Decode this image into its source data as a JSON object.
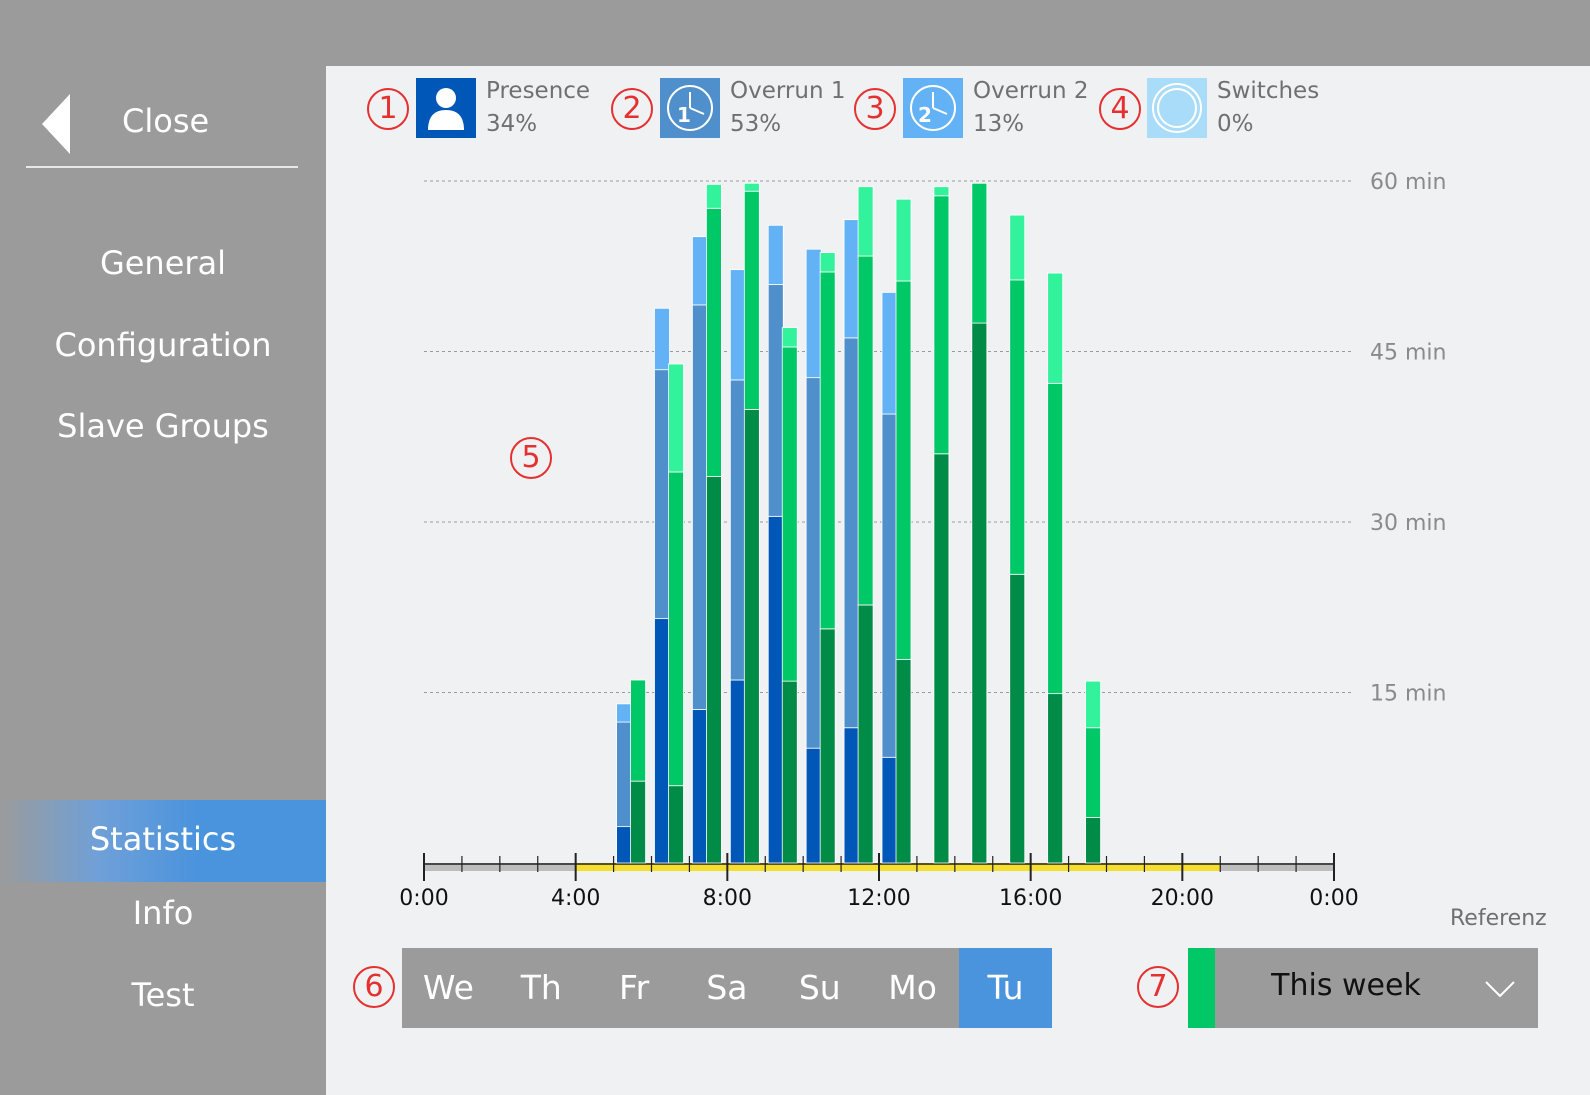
{
  "sidebar": {
    "close_label": "Close",
    "items": [
      {
        "label": "General"
      },
      {
        "label": "Configuration"
      },
      {
        "label": "Slave Groups"
      },
      {
        "label": "Statistics",
        "active": true
      },
      {
        "label": "Info"
      },
      {
        "label": "Test"
      }
    ]
  },
  "markers": [
    "1",
    "2",
    "3",
    "4",
    "5",
    "6",
    "7"
  ],
  "legend": [
    {
      "name": "Presence",
      "value": "34%",
      "icon": "person-icon",
      "color": "#0057b8"
    },
    {
      "name": "Overrun 1",
      "value": "53%",
      "icon": "clock-1-icon",
      "color": "#4f8fcb"
    },
    {
      "name": "Overrun 2",
      "value": "13%",
      "icon": "clock-2-icon",
      "color": "#62b2f5"
    },
    {
      "name": "Switches",
      "value": "0%",
      "icon": "switch-circle-icon",
      "color": "#a8dcf8"
    }
  ],
  "chart_data": {
    "type": "bar",
    "y_ticks": [
      "15 min",
      "30 min",
      "45 min",
      "60 min"
    ],
    "ylim": [
      0,
      60
    ],
    "x_ticks": [
      "0:00",
      "4:00",
      "8:00",
      "12:00",
      "16:00",
      "20:00",
      "0:00"
    ],
    "xlim_hours": [
      0,
      24
    ],
    "active_day_hours": [
      4,
      21
    ],
    "selected_day": [
      {
        "hour": 5.5,
        "presence": 3.2,
        "overrun1": 9.2,
        "overrun2": 1.6
      },
      {
        "hour": 6.5,
        "presence": 21.5,
        "overrun1": 21.9,
        "overrun2": 5.4
      },
      {
        "hour": 7.5,
        "presence": 13.5,
        "overrun1": 35.6,
        "overrun2": 6.0
      },
      {
        "hour": 8.5,
        "presence": 16.1,
        "overrun1": 26.4,
        "overrun2": 9.7
      },
      {
        "hour": 9.5,
        "presence": 30.5,
        "overrun1": 20.4,
        "overrun2": 5.2
      },
      {
        "hour": 10.5,
        "presence": 10.1,
        "overrun1": 32.6,
        "overrun2": 11.3
      },
      {
        "hour": 11.5,
        "presence": 11.9,
        "overrun1": 34.3,
        "overrun2": 10.4
      },
      {
        "hour": 12.5,
        "presence": 9.3,
        "overrun1": 30.2,
        "overrun2": 10.7
      }
    ],
    "reference": [
      {
        "hour": 5.5,
        "dark": 7.2,
        "mid": 8.9,
        "light": 0
      },
      {
        "hour": 6.5,
        "dark": 6.8,
        "mid": 27.6,
        "light": 9.5
      },
      {
        "hour": 7.5,
        "dark": 34.0,
        "mid": 23.6,
        "light": 2.1
      },
      {
        "hour": 8.5,
        "dark": 39.9,
        "mid": 19.2,
        "light": 0.7
      },
      {
        "hour": 9.5,
        "dark": 16.0,
        "mid": 29.4,
        "light": 1.7
      },
      {
        "hour": 10.5,
        "dark": 20.6,
        "mid": 31.4,
        "light": 1.7
      },
      {
        "hour": 11.5,
        "dark": 22.7,
        "mid": 30.7,
        "light": 6.1
      },
      {
        "hour": 12.5,
        "dark": 17.9,
        "mid": 33.3,
        "light": 7.2
      },
      {
        "hour": 13.5,
        "dark": 36.0,
        "mid": 22.7,
        "light": 0.8
      },
      {
        "hour": 14.5,
        "dark": 47.5,
        "mid": 12.3,
        "light": 0
      },
      {
        "hour": 15.5,
        "dark": 25.4,
        "mid": 25.9,
        "light": 5.7
      },
      {
        "hour": 16.5,
        "dark": 14.9,
        "mid": 27.3,
        "light": 9.7
      },
      {
        "hour": 17.5,
        "dark": 4.0,
        "mid": 7.9,
        "light": 4.1
      }
    ],
    "colors": {
      "presence": "#0057b8",
      "overrun1": "#4f8fcb",
      "overrun2": "#62b2f5",
      "ref_dark": "#008b47",
      "ref_mid": "#00c867",
      "ref_light": "#33f29c",
      "axis_active": "#f5de2e",
      "axis_inactive": "#bdbdbd"
    }
  },
  "days": [
    {
      "label": "We"
    },
    {
      "label": "Th"
    },
    {
      "label": "Fr"
    },
    {
      "label": "Sa"
    },
    {
      "label": "Su"
    },
    {
      "label": "Mo"
    },
    {
      "label": "Tu",
      "active": true
    }
  ],
  "reference": {
    "label": "Referenz",
    "selected": "This week",
    "swatch_color": "#00c867"
  }
}
